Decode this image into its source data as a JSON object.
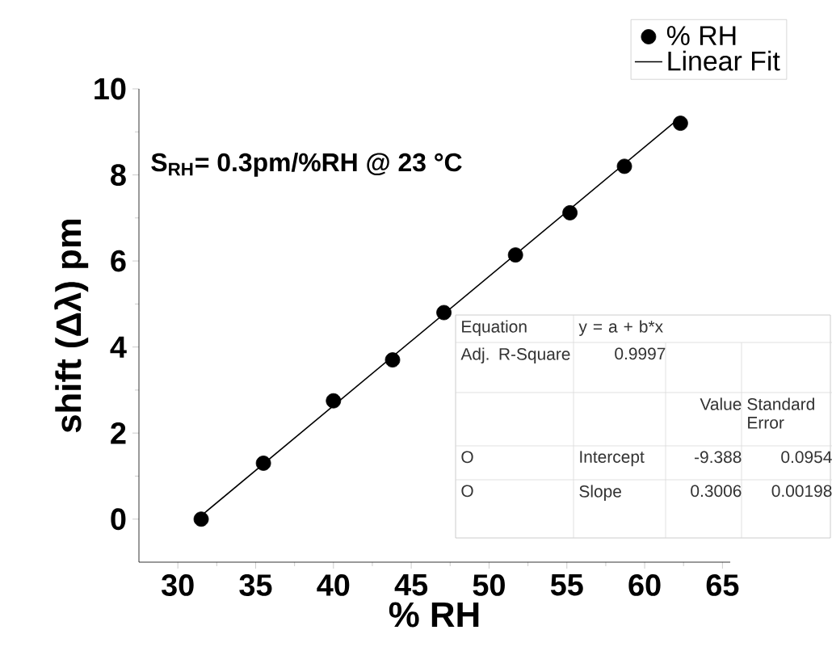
{
  "chart_data": {
    "type": "scatter",
    "xlabel": "% RH",
    "ylabel": "shift (Δλ) pm",
    "xlim": [
      27.5,
      65.5
    ],
    "ylim": [
      -1,
      10
    ],
    "xticks": [
      30,
      35,
      40,
      45,
      50,
      55,
      60,
      65
    ],
    "yticks": [
      0,
      2,
      4,
      6,
      8,
      10
    ],
    "legend": "top right",
    "series": [
      {
        "name": "% RH",
        "marker": "circle",
        "color": "#000000",
        "x": [
          31.5,
          35.5,
          40.0,
          43.8,
          47.1,
          51.7,
          55.2,
          58.7,
          62.3
        ],
        "values": [
          0.0,
          1.3,
          2.75,
          3.7,
          4.8,
          6.14,
          7.12,
          8.2,
          9.2
        ]
      },
      {
        "name": "Linear Fit",
        "type": "line",
        "marker": "none",
        "color": "#000000",
        "x": [
          31.5,
          62.3
        ],
        "values": [
          0.08,
          9.34
        ]
      }
    ],
    "annotations": [
      "S$_{RH}$= 0.3pm/%RH @ 23 °C",
      "Equation",
      "y = a + b*x",
      "Adj. R-Square",
      "0.9997",
      "Value",
      "Standard Error",
      "O",
      "Intercept",
      "-9.388",
      "0.0954",
      "O",
      "Slope",
      "0.3006",
      "0.00198"
    ]
  }
}
